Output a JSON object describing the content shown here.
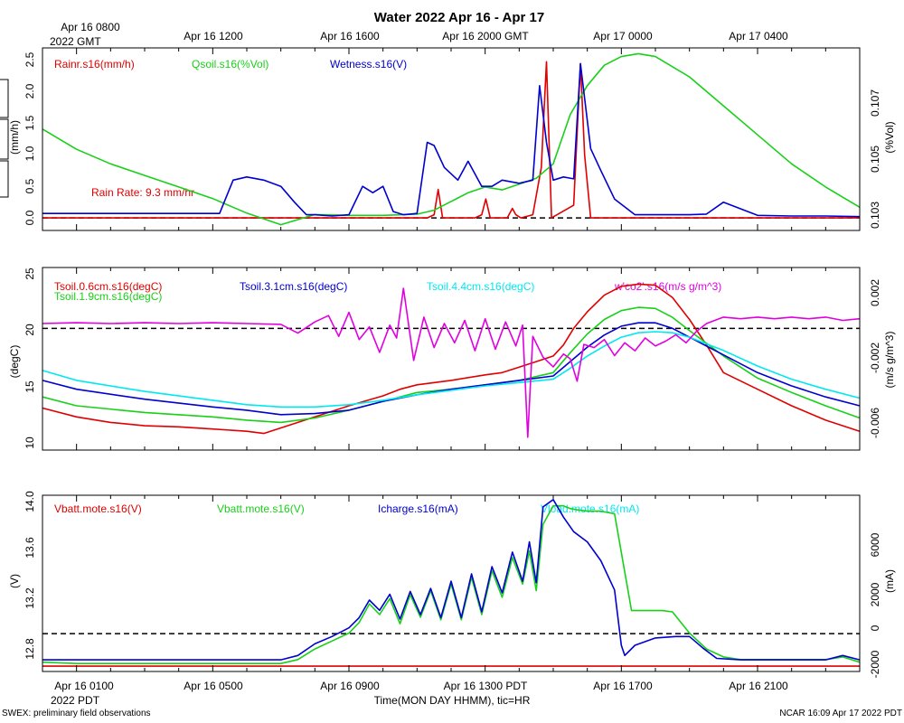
{
  "title": "Water 2022 Apr 16 - Apr 17",
  "top_axis": {
    "ticks": [
      {
        "h": 0,
        "label": "Apr 16 0800"
      },
      {
        "h": 4,
        "label": "Apr 16 1200"
      },
      {
        "h": 8,
        "label": "Apr 16 1600"
      },
      {
        "h": 12,
        "label": "Apr 16 2000 GMT"
      },
      {
        "h": 16,
        "label": "Apr 17 0000"
      },
      {
        "h": 20,
        "label": "Apr 17 0400"
      }
    ],
    "sublabel": "2022 GMT"
  },
  "bottom_axis": {
    "ticks": [
      {
        "h": 0,
        "label": "Apr 16 0100"
      },
      {
        "h": 4,
        "label": "Apr 16 0500"
      },
      {
        "h": 8,
        "label": "Apr 16 0900"
      },
      {
        "h": 12,
        "label": "Apr 16 1300 PDT"
      },
      {
        "h": 16,
        "label": "Apr 16 1700"
      },
      {
        "h": 20,
        "label": "Apr 16 2100"
      }
    ],
    "sublabel": "2022 PDT",
    "title": "Time(MON DAY HHMM), tic=HR"
  },
  "footer": {
    "left": "SWEX: preliminary field observations",
    "right": "NCAR 16:09 Apr 17 2022 PDT"
  },
  "colors": {
    "red": "#e00000",
    "green": "#18d018",
    "blue": "#0000d0",
    "cyan": "#00e8f0",
    "magenta": "#e000e0",
    "black": "#000000"
  },
  "chart_data": [
    {
      "type": "line",
      "panel": "rain-soil-wetness",
      "x_unit": "hours since Apr 16 0100 PDT",
      "xlim": [
        -1,
        23
      ],
      "ylim_left": [
        -0.2,
        2.7
      ],
      "ylim_right": [
        0.1025,
        0.1088
      ],
      "ylabel_left": "(mm/h)",
      "ylabel_right": "(%Vol)",
      "left_ticks": [
        "0.0",
        "0.5",
        "1.0",
        "1.5",
        "2.0",
        "2.5"
      ],
      "right_ticks": [
        "0.103",
        "0.105",
        "0.107"
      ],
      "annotation": "Rain Rate: 9.3 mm/hr",
      "reference_line": 0,
      "series": [
        {
          "name": "Rainr.s16(mm/h)",
          "axis": "left",
          "color": "red",
          "x": [
            -1,
            10.3,
            10.5,
            10.62,
            10.75,
            11.7,
            11.9,
            12.02,
            12.15,
            12.65,
            12.8,
            12.9,
            13.05,
            13.4,
            13.65,
            13.8,
            13.95,
            14.6,
            14.8,
            14.92,
            15.1,
            23
          ],
          "y": [
            0,
            0,
            0.05,
            0.45,
            0,
            0,
            0.05,
            0.3,
            0,
            0,
            0.15,
            0.05,
            0,
            0.05,
            0.8,
            2.48,
            0,
            0.2,
            2.45,
            1.0,
            0,
            0
          ]
        },
        {
          "name": "Qsoil.s16(%Vol)",
          "axis": "right",
          "color": "green",
          "x": [
            -1,
            0,
            1,
            2,
            3,
            4,
            5,
            6,
            7,
            8,
            9,
            10,
            10.5,
            11,
            11.5,
            12,
            12.5,
            13,
            13.5,
            14,
            14.5,
            15,
            15.5,
            16,
            16.5,
            17,
            18,
            19,
            20,
            21,
            22,
            23
          ],
          "y": [
            0.106,
            0.1053,
            0.1048,
            0.1044,
            0.104,
            0.1036,
            0.1031,
            0.1027,
            0.10305,
            0.10302,
            0.10302,
            0.10306,
            0.1032,
            0.1035,
            0.1038,
            0.104,
            0.1039,
            0.1041,
            0.1043,
            0.1048,
            0.1065,
            0.1075,
            0.1082,
            0.1085,
            0.1086,
            0.1085,
            0.1078,
            0.1068,
            0.1058,
            0.1048,
            0.104,
            0.1033
          ]
        },
        {
          "name": "Wetness.s16(V)",
          "axis": "left",
          "color": "blue",
          "x": [
            -1,
            4.2,
            4.6,
            5.0,
            5.5,
            6.0,
            6.4,
            6.75,
            7.0,
            7.5,
            8.0,
            8.4,
            8.7,
            9.0,
            9.3,
            9.6,
            10.0,
            10.3,
            10.5,
            10.8,
            11.2,
            11.5,
            11.9,
            12.2,
            12.5,
            13.0,
            13.4,
            13.6,
            13.8,
            14.0,
            14.3,
            14.6,
            14.8,
            15.1,
            15.4,
            15.8,
            16.4,
            17.0,
            18.0,
            18.5,
            19.0,
            20.0,
            21.0,
            22.0,
            23.0
          ],
          "y": [
            0.07,
            0.07,
            0.6,
            0.65,
            0.6,
            0.5,
            0.25,
            0.05,
            0.05,
            0.03,
            0.05,
            0.5,
            0.4,
            0.5,
            0.1,
            0.05,
            0.07,
            1.2,
            1.15,
            0.8,
            0.6,
            0.9,
            0.5,
            0.5,
            0.6,
            0.55,
            0.6,
            2.1,
            1.2,
            0.6,
            0.65,
            0.62,
            2.45,
            1.1,
            0.75,
            0.3,
            0.05,
            0.05,
            0.05,
            0.06,
            0.25,
            0.04,
            0.03,
            0.03,
            0.02
          ]
        }
      ]
    },
    {
      "type": "line",
      "panel": "soil-temperature",
      "x_unit": "hours since Apr 16 0100 PDT",
      "xlim": [
        -1,
        23
      ],
      "ylim_left": [
        9,
        25.5
      ],
      "ylim_right": [
        -0.0076,
        0.0038
      ],
      "ylabel_left": "(degC)",
      "ylabel_right": "(m/s g/m^3)",
      "left_ticks": [
        "10",
        "15",
        "20",
        "25"
      ],
      "right_ticks": [
        "0.002",
        "-0.002",
        "-0.006"
      ],
      "reference_line": 0,
      "series": [
        {
          "name": "Tsoil.0.6cm.s16(degC)",
          "axis": "left",
          "color": "red",
          "x": [
            -1,
            0,
            1,
            2,
            3,
            4,
            5,
            5.5,
            6,
            7,
            8,
            9,
            9.5,
            10,
            11,
            12,
            12.5,
            13,
            13.5,
            14,
            14.3,
            14.6,
            15,
            15.5,
            16,
            16.5,
            17,
            17.5,
            18,
            18.5,
            19,
            20,
            21,
            22,
            23
          ],
          "y": [
            12.8,
            12.0,
            11.5,
            11.2,
            11.1,
            10.9,
            10.7,
            10.5,
            11.0,
            12.0,
            13.0,
            13.9,
            14.5,
            14.9,
            15.3,
            15.8,
            16.0,
            16.5,
            17.0,
            17.5,
            18.5,
            20.0,
            21.5,
            23.0,
            23.8,
            24.0,
            23.9,
            22.8,
            20.8,
            18.5,
            16.0,
            14.5,
            13.0,
            11.7,
            10.7
          ]
        },
        {
          "name": "Tsoil.1.9cm.s16(degC)",
          "axis": "left",
          "color": "green",
          "x": [
            -1,
            0,
            2,
            4,
            5,
            6,
            7,
            8,
            9,
            10,
            11,
            12,
            13,
            14,
            14.5,
            15,
            15.5,
            16,
            16.5,
            17,
            17.5,
            18,
            19,
            20,
            21,
            22,
            23
          ],
          "y": [
            13.8,
            13.0,
            12.4,
            12.0,
            11.7,
            11.5,
            11.9,
            12.6,
            13.4,
            14.2,
            14.5,
            14.9,
            15.3,
            16.0,
            17.8,
            19.5,
            20.8,
            21.6,
            21.9,
            21.8,
            21.0,
            19.8,
            17.5,
            15.5,
            14.2,
            13.0,
            11.9
          ]
        },
        {
          "name": "Tsoil.3.1cm.s16(degC)",
          "axis": "left",
          "color": "blue",
          "x": [
            -1,
            0,
            2,
            4,
            5,
            6,
            7,
            8,
            9,
            10,
            11,
            12,
            13,
            14,
            14.5,
            15,
            15.5,
            16,
            16.5,
            17,
            17.5,
            18,
            19,
            20,
            21,
            22,
            23
          ],
          "y": [
            15.3,
            14.5,
            13.6,
            12.9,
            12.6,
            12.2,
            12.3,
            12.6,
            13.4,
            14.0,
            14.5,
            14.9,
            15.3,
            15.7,
            17.0,
            18.3,
            19.4,
            20.2,
            20.5,
            20.5,
            20.0,
            19.2,
            17.6,
            16.0,
            14.8,
            13.8,
            13.0
          ]
        },
        {
          "name": "Tsoil.4.4cm.s16(degC)",
          "axis": "left",
          "color": "cyan",
          "x": [
            -1,
            0,
            2,
            4,
            5,
            6,
            7,
            8,
            9,
            10,
            11,
            12,
            13,
            14,
            14.5,
            15,
            15.5,
            16,
            16.5,
            17,
            17.5,
            18,
            19,
            20,
            21,
            22,
            23
          ],
          "y": [
            16.2,
            15.3,
            14.3,
            13.5,
            13.1,
            12.9,
            12.9,
            13.1,
            13.5,
            14.0,
            14.4,
            14.8,
            15.1,
            15.4,
            16.4,
            17.5,
            18.4,
            19.2,
            19.6,
            19.7,
            19.6,
            19.2,
            18.0,
            16.6,
            15.4,
            14.5,
            13.7
          ]
        },
        {
          "name": "w'co2'.s16(m/s g/m^3)",
          "axis": "right",
          "color": "magenta",
          "x": [
            -1,
            0,
            1,
            2,
            3,
            4,
            5,
            6,
            6.5,
            7,
            7.4,
            7.7,
            8.0,
            8.3,
            8.6,
            8.9,
            9.2,
            9.4,
            9.6,
            9.9,
            10.2,
            10.5,
            10.8,
            11.1,
            11.4,
            11.7,
            12.0,
            12.3,
            12.6,
            12.9,
            13.1,
            13.25,
            13.4,
            13.7,
            14.0,
            14.3,
            14.5,
            14.7,
            14.9,
            15.2,
            15.5,
            15.8,
            16.1,
            16.4,
            16.7,
            17.0,
            17.3,
            17.6,
            17.9,
            18.2,
            18.5,
            19.0,
            19.5,
            20.0,
            20.5,
            21.0,
            21.5,
            22.0,
            22.5,
            23.0
          ],
          "y": [
            0.0003,
            0.00035,
            0.0003,
            0.00035,
            0.0003,
            0.00035,
            0.0003,
            0.00025,
            -0.0003,
            0.0004,
            0.0008,
            -0.0005,
            0.001,
            -0.0007,
            0.0001,
            -0.0015,
            0.0002,
            -0.0006,
            0.0025,
            -0.002,
            0.0007,
            -0.0012,
            0.0003,
            -0.0009,
            0.0005,
            -0.0014,
            0.0006,
            -0.0013,
            0.0004,
            -0.0011,
            0.0002,
            -0.0068,
            -0.0005,
            -0.0018,
            -0.0024,
            -0.0016,
            -0.0019,
            -0.0033,
            -0.001,
            -0.0012,
            -0.0007,
            -0.0017,
            -0.0009,
            -0.0014,
            -0.0006,
            -0.0011,
            -0.0008,
            -0.0004,
            -0.0009,
            -0.0002,
            0.0003,
            0.0007,
            0.0006,
            0.0007,
            0.0006,
            0.0007,
            0.0006,
            0.0007,
            0.0005,
            0.0006
          ]
        }
      ]
    },
    {
      "type": "line",
      "panel": "power",
      "x_unit": "hours since Apr 16 0100 PDT",
      "xlim": [
        -1,
        23
      ],
      "ylim_left": [
        12.69,
        14.02
      ],
      "ylim_right": [
        -2600,
        9500
      ],
      "ylabel_left": "(V)",
      "ylabel_right": "(mA)",
      "left_ticks": [
        "12.8",
        "13.2",
        "13.6",
        "14.0"
      ],
      "right_ticks": [
        "-2000",
        "0",
        "2000",
        "6000"
      ],
      "reference_line": 0,
      "series": [
        {
          "name": "Vbatt.mote.s16(V)",
          "axis": "left",
          "color": "red",
          "x": [
            -1,
            23
          ],
          "y": [
            12.73,
            12.73
          ]
        },
        {
          "name": "Vbatt.mote.s16(V)",
          "axis": "left",
          "color": "green",
          "x": [
            -1,
            0,
            2,
            4,
            5,
            6,
            6.5,
            7,
            7.5,
            8,
            8.3,
            8.6,
            8.9,
            9.2,
            9.5,
            9.8,
            10.1,
            10.4,
            10.7,
            11.0,
            11.3,
            11.6,
            11.9,
            12.2,
            12.5,
            12.8,
            13.1,
            13.3,
            13.5,
            13.7,
            14.0,
            14.3,
            14.5,
            14.7,
            15.0,
            15.4,
            15.8,
            16.3,
            16.6,
            16.9,
            17.2,
            17.5,
            18.0,
            18.5,
            19.0,
            19.5,
            20.0,
            21.0,
            22.0,
            22.5,
            23.0
          ],
          "y": [
            12.76,
            12.75,
            12.75,
            12.75,
            12.75,
            12.75,
            12.78,
            12.86,
            12.92,
            12.98,
            13.06,
            13.2,
            13.12,
            13.24,
            13.05,
            13.27,
            13.1,
            13.3,
            13.08,
            13.35,
            13.08,
            13.4,
            13.12,
            13.45,
            13.25,
            13.55,
            13.35,
            13.6,
            13.3,
            13.8,
            13.94,
            13.94,
            13.92,
            13.91,
            13.9,
            13.9,
            13.88,
            13.15,
            13.15,
            13.15,
            13.15,
            13.14,
            12.98,
            12.86,
            12.8,
            12.78,
            12.78,
            12.78,
            12.78,
            12.8,
            12.76
          ]
        },
        {
          "name": "Icharge.s16(mA)",
          "axis": "right",
          "color": "blue",
          "x": [
            -1,
            0,
            2,
            4,
            5,
            6,
            6.5,
            7,
            7.5,
            8,
            8.3,
            8.6,
            8.9,
            9.2,
            9.5,
            9.8,
            10.1,
            10.4,
            10.7,
            11.0,
            11.3,
            11.6,
            11.9,
            12.2,
            12.5,
            12.8,
            13.1,
            13.3,
            13.5,
            13.7,
            14.0,
            14.3,
            14.6,
            15.0,
            15.4,
            15.8,
            16.0,
            16.1,
            16.4,
            17.0,
            17.6,
            18.0,
            18.4,
            18.8,
            19.5,
            20.0,
            21.0,
            22.0,
            22.5,
            23.0
          ],
          "y": [
            -1800,
            -1800,
            -1800,
            -1800,
            -1800,
            -1800,
            -1500,
            -700,
            -200,
            400,
            1100,
            2300,
            1600,
            2700,
            1000,
            2900,
            1300,
            3100,
            1100,
            3600,
            1100,
            4100,
            1500,
            4600,
            2800,
            5600,
            3600,
            6300,
            3500,
            8700,
            9200,
            8000,
            7000,
            6300,
            5000,
            3000,
            -800,
            -1500,
            -800,
            -300,
            -200,
            -200,
            -1000,
            -1700,
            -1800,
            -1800,
            -1800,
            -1800,
            -1500,
            -1800
          ]
        },
        {
          "name": "Vload.mote.s16(mA)",
          "axis": "right",
          "color": "cyan",
          "x": [],
          "y": []
        }
      ]
    }
  ]
}
